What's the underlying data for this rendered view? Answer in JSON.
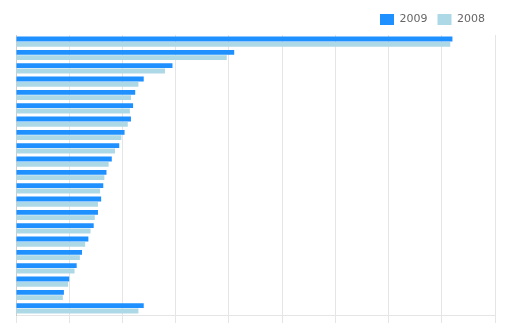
{
  "chart_data": {
    "type": "bar",
    "orientation": "horizontal",
    "categories": [
      null,
      null,
      null,
      null,
      null,
      null,
      null,
      null,
      null,
      null,
      null,
      null,
      null,
      null,
      null,
      null,
      null,
      null,
      null,
      null,
      null
    ],
    "series": [
      {
        "name": "2009",
        "color": "#1E90FF",
        "values": [
          410000,
          205000,
          147000,
          120000,
          112000,
          110000,
          108000,
          102000,
          97000,
          90000,
          85000,
          82000,
          80000,
          77000,
          73000,
          68000,
          62000,
          57000,
          50000,
          45000,
          120000
        ]
      },
      {
        "name": "2008",
        "color": "#ADD8E6",
        "values": [
          408000,
          198000,
          140000,
          115000,
          108000,
          107000,
          105000,
          99000,
          93000,
          87000,
          83000,
          79000,
          77000,
          74000,
          70000,
          65000,
          60000,
          55000,
          49000,
          44000,
          115000
        ]
      }
    ],
    "xlim": [
      0,
      450000
    ],
    "xticks": [
      0,
      50000,
      100000,
      150000,
      200000,
      250000,
      300000,
      350000,
      400000,
      450000
    ],
    "grid": true,
    "legend": "upper right",
    "tick_labels": false
  }
}
